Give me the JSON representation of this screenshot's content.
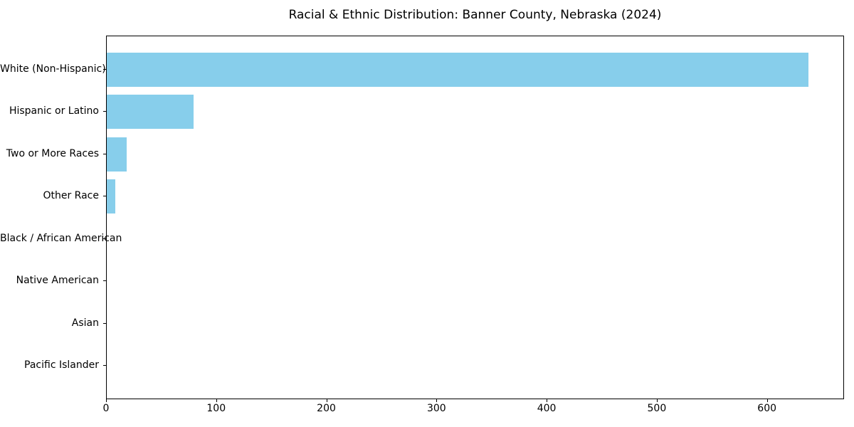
{
  "title": "Racial & Ethnic Distribution: Banner County, Nebraska (2024)",
  "chart_data": {
    "type": "bar",
    "orientation": "horizontal",
    "title": "Racial & Ethnic Distribution: Banner County, Nebraska (2024)",
    "xlabel": "",
    "ylabel": "",
    "categories": [
      "White (Non-Hispanic)",
      "Hispanic or Latino",
      "Two or More Races",
      "Other Race",
      "Black / African American",
      "Native American",
      "Asian",
      "Pacific Islander"
    ],
    "values": [
      637,
      79,
      18,
      8,
      0,
      0,
      0,
      0
    ],
    "xlim": [
      0,
      670
    ],
    "x_ticks": [
      0,
      100,
      200,
      300,
      400,
      500,
      600
    ],
    "grid": false,
    "legend": null,
    "bar_color": "#87ceeb"
  },
  "colors": {
    "bar": "#87ceeb",
    "axis": "#000000",
    "text": "#000000",
    "background": "#ffffff"
  }
}
